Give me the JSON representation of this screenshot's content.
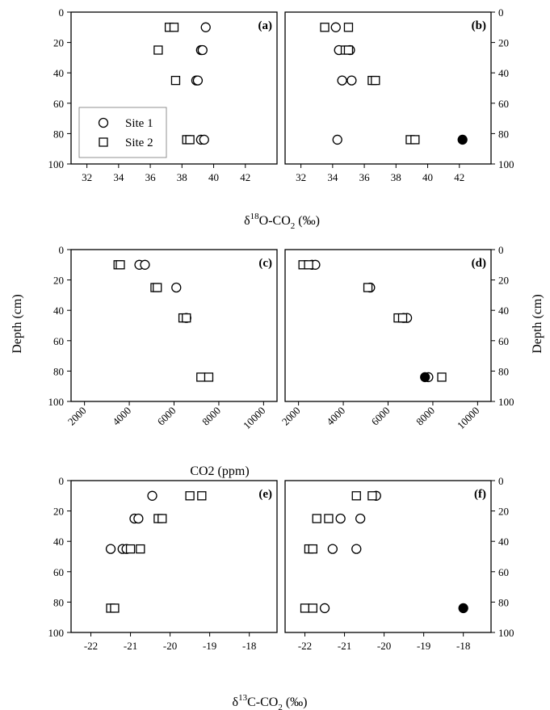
{
  "chart_data": [
    {
      "type": "scatter",
      "panel": "(a)",
      "xlim": [
        31,
        44
      ],
      "xticks": [
        32,
        34,
        36,
        38,
        40,
        42
      ],
      "ylim": [
        0,
        100
      ],
      "yticks": [
        0,
        20,
        40,
        60,
        80,
        100
      ],
      "legend": {
        "placement": "lower-left",
        "entries": [
          "Site 1",
          "Site 2"
        ]
      },
      "series": [
        {
          "name": "Site 1",
          "marker": "circle",
          "points": [
            {
              "x": 39.5,
              "y": 10
            },
            {
              "x": 39.2,
              "y": 25
            },
            {
              "x": 39.3,
              "y": 25
            },
            {
              "x": 38.9,
              "y": 45
            },
            {
              "x": 39.0,
              "y": 45
            },
            {
              "x": 39.2,
              "y": 84
            },
            {
              "x": 39.4,
              "y": 84
            }
          ]
        },
        {
          "name": "Site 2",
          "marker": "square",
          "points": [
            {
              "x": 37.2,
              "y": 10
            },
            {
              "x": 37.5,
              "y": 10
            },
            {
              "x": 36.5,
              "y": 25
            },
            {
              "x": 37.6,
              "y": 45
            },
            {
              "x": 38.3,
              "y": 84
            },
            {
              "x": 38.5,
              "y": 84
            }
          ]
        }
      ]
    },
    {
      "type": "scatter",
      "panel": "(b)",
      "xlim": [
        31,
        44
      ],
      "xticks": [
        32,
        34,
        36,
        38,
        40,
        42
      ],
      "ylim": [
        0,
        100
      ],
      "yticks": [
        0,
        20,
        40,
        60,
        80,
        100
      ],
      "series": [
        {
          "name": "Site 1",
          "marker": "circle",
          "points": [
            {
              "x": 34.2,
              "y": 10
            },
            {
              "x": 34.4,
              "y": 25
            },
            {
              "x": 35.1,
              "y": 25
            },
            {
              "x": 34.6,
              "y": 45
            },
            {
              "x": 35.2,
              "y": 45
            },
            {
              "x": 34.3,
              "y": 84
            }
          ]
        },
        {
          "name": "Site 2",
          "marker": "square",
          "points": [
            {
              "x": 33.5,
              "y": 10
            },
            {
              "x": 35.0,
              "y": 10
            },
            {
              "x": 34.8,
              "y": 25
            },
            {
              "x": 35.0,
              "y": 25
            },
            {
              "x": 36.5,
              "y": 45
            },
            {
              "x": 36.7,
              "y": 45
            },
            {
              "x": 38.9,
              "y": 84
            },
            {
              "x": 39.2,
              "y": 84
            }
          ]
        },
        {
          "marker": "filled-circle",
          "points": [
            {
              "x": 42.2,
              "y": 84
            }
          ]
        }
      ]
    },
    {
      "type": "scatter",
      "panel": "(c)",
      "xlim": [
        1400,
        10600
      ],
      "xticks": [
        2000,
        4000,
        6000,
        8000,
        10000
      ],
      "ylim": [
        0,
        100
      ],
      "yticks": [
        0,
        20,
        40,
        60,
        80,
        100
      ],
      "series": [
        {
          "name": "Site 1",
          "marker": "circle",
          "points": [
            {
              "x": 4450,
              "y": 10
            },
            {
              "x": 4700,
              "y": 10
            },
            {
              "x": 6100,
              "y": 25
            },
            {
              "x": 6550,
              "y": 45
            }
          ]
        },
        {
          "name": "Site 2",
          "marker": "square",
          "points": [
            {
              "x": 3500,
              "y": 10
            },
            {
              "x": 3600,
              "y": 10
            },
            {
              "x": 5150,
              "y": 25
            },
            {
              "x": 5250,
              "y": 25
            },
            {
              "x": 6400,
              "y": 45
            },
            {
              "x": 6550,
              "y": 45
            },
            {
              "x": 7200,
              "y": 84
            },
            {
              "x": 7550,
              "y": 84
            }
          ]
        }
      ]
    },
    {
      "type": "scatter",
      "panel": "(d)",
      "xlim": [
        1400,
        10600
      ],
      "xticks": [
        2000,
        4000,
        6000,
        8000,
        10000
      ],
      "ylim": [
        0,
        100
      ],
      "yticks": [
        0,
        20,
        40,
        60,
        80,
        100
      ],
      "series": [
        {
          "name": "Site 1",
          "marker": "circle",
          "points": [
            {
              "x": 2600,
              "y": 10
            },
            {
              "x": 2750,
              "y": 10
            },
            {
              "x": 5200,
              "y": 25
            },
            {
              "x": 6700,
              "y": 45
            },
            {
              "x": 6850,
              "y": 45
            },
            {
              "x": 7800,
              "y": 84
            }
          ]
        },
        {
          "name": "Site 2",
          "marker": "square",
          "points": [
            {
              "x": 2200,
              "y": 10
            },
            {
              "x": 2450,
              "y": 10
            },
            {
              "x": 5100,
              "y": 25
            },
            {
              "x": 6450,
              "y": 45
            },
            {
              "x": 6650,
              "y": 45
            },
            {
              "x": 8400,
              "y": 84
            }
          ]
        },
        {
          "marker": "filled-circle",
          "points": [
            {
              "x": 7650,
              "y": 84
            }
          ]
        }
      ]
    },
    {
      "type": "scatter",
      "panel": "(e)",
      "xlim": [
        -22.5,
        -17.3
      ],
      "xticks": [
        -22,
        -21,
        -20,
        -19,
        -18
      ],
      "ylim": [
        0,
        100
      ],
      "yticks": [
        0,
        20,
        40,
        60,
        80,
        100
      ],
      "series": [
        {
          "name": "Site 1",
          "marker": "circle",
          "points": [
            {
              "x": -20.45,
              "y": 10
            },
            {
              "x": -20.9,
              "y": 25
            },
            {
              "x": -20.8,
              "y": 25
            },
            {
              "x": -21.5,
              "y": 45
            },
            {
              "x": -21.2,
              "y": 45
            },
            {
              "x": -21.1,
              "y": 45
            }
          ]
        },
        {
          "name": "Site 2",
          "marker": "square",
          "points": [
            {
              "x": -19.5,
              "y": 10
            },
            {
              "x": -19.2,
              "y": 10
            },
            {
              "x": -20.3,
              "y": 25
            },
            {
              "x": -20.2,
              "y": 25
            },
            {
              "x": -21.0,
              "y": 45
            },
            {
              "x": -20.75,
              "y": 45
            },
            {
              "x": -21.5,
              "y": 84
            },
            {
              "x": -21.4,
              "y": 84
            }
          ]
        }
      ]
    },
    {
      "type": "scatter",
      "panel": "(f)",
      "xlim": [
        -22.5,
        -17.3
      ],
      "xticks": [
        -22,
        -21,
        -20,
        -19,
        -18
      ],
      "ylim": [
        0,
        100
      ],
      "yticks": [
        0,
        20,
        40,
        60,
        80,
        100
      ],
      "series": [
        {
          "name": "Site 1",
          "marker": "circle",
          "points": [
            {
              "x": -20.2,
              "y": 10
            },
            {
              "x": -21.1,
              "y": 25
            },
            {
              "x": -20.6,
              "y": 25
            },
            {
              "x": -21.3,
              "y": 45
            },
            {
              "x": -20.7,
              "y": 45
            },
            {
              "x": -21.5,
              "y": 84
            }
          ]
        },
        {
          "name": "Site 2",
          "marker": "square",
          "points": [
            {
              "x": -20.7,
              "y": 10
            },
            {
              "x": -20.3,
              "y": 10
            },
            {
              "x": -21.7,
              "y": 25
            },
            {
              "x": -21.4,
              "y": 25
            },
            {
              "x": -21.9,
              "y": 45
            },
            {
              "x": -21.8,
              "y": 45
            },
            {
              "x": -22.0,
              "y": 84
            },
            {
              "x": -21.8,
              "y": 84
            }
          ]
        },
        {
          "marker": "filled-circle",
          "points": [
            {
              "x": -18.0,
              "y": 84
            }
          ]
        }
      ]
    }
  ],
  "axis_labels": {
    "row1_x": {
      "delta": "δ",
      "sup": "18",
      "main": "O-CO",
      "sub": "2",
      "unit": " (‰)"
    },
    "row2_x": "CO2 (ppm)",
    "row3_x": {
      "delta": "δ",
      "sup": "13",
      "main": "C-CO",
      "sub": "2",
      "unit": " (‰)"
    },
    "row2_y_left": "Depth (cm)",
    "row2_y_right": "Depth (cm)"
  }
}
